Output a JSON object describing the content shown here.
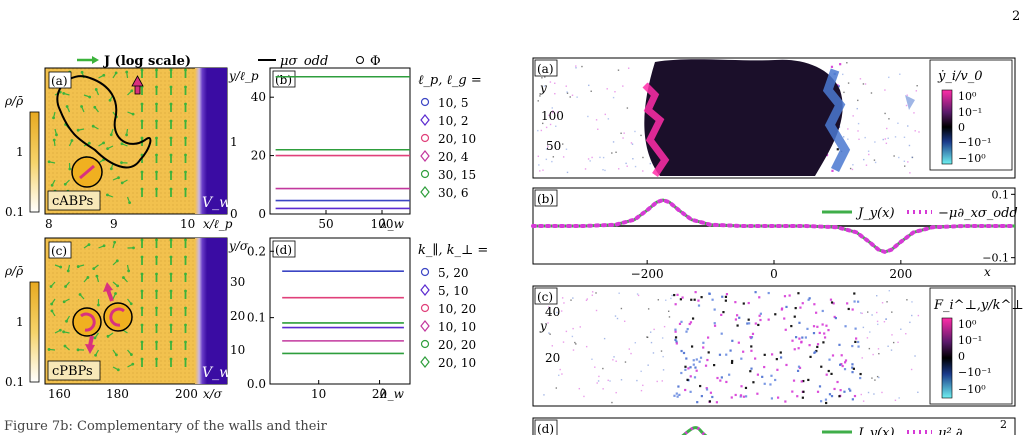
{
  "page_number": "2",
  "colors": {
    "field_bg": "#f2c14e",
    "wall": "#3a0ca3",
    "arrow_green": "#3bb33b",
    "particle_fill": "#f0b020",
    "particle_arrow": "#d9317e",
    "blue": "#3b45c4",
    "purple": "#5b2bd0",
    "pink": "#e0407a",
    "magenta": "#c2389e",
    "green": "#2e9e3c",
    "diag_green": "#3fae49",
    "diag_mag": "#d63ad6"
  },
  "top_legend": {
    "arrow_label": "J (log scale)",
    "line_label": "μσ_odd",
    "marker_label": "Φ"
  },
  "panel_a": {
    "label": "(a)",
    "tag": "cABPs",
    "ylabel": "ρ/ρ̄",
    "wall_label": "V_w",
    "xticks": [
      "8",
      "9",
      "10"
    ],
    "xaxis": "x/ℓ_p",
    "yaxis": "y/ℓ_p",
    "yticks": [
      "0",
      "1"
    ],
    "cbar_ticks": [
      "0.1",
      "1"
    ]
  },
  "panel_c": {
    "label": "(c)",
    "tag": "cPBPs",
    "ylabel": "ρ/ρ̄",
    "wall_label": "V_w",
    "xticks": [
      "160",
      "180",
      "200"
    ],
    "xaxis": "x/σ",
    "yaxis": "y/σ",
    "yticks": [
      "10",
      "20",
      "30"
    ],
    "cbar_ticks": [
      "0.1",
      "1"
    ]
  },
  "chart_data": [
    {
      "id": "b",
      "type": "line",
      "label": "(b)",
      "xlabel": "λ_w",
      "xlim": [
        0,
        125
      ],
      "ylim": [
        0,
        50
      ],
      "xticks": [
        "50",
        "100"
      ],
      "yticks": [
        "0",
        "20",
        "40"
      ],
      "legend_title": "ℓ_p, ℓ_g =",
      "series": [
        {
          "name": "10, 5",
          "marker": "circle",
          "color": "#3b45c4",
          "x": [
            5,
            20,
            35,
            50,
            65,
            80,
            95,
            110,
            125
          ],
          "values": [
            4.6,
            4.6,
            4.6,
            4.6,
            4.6,
            4.6,
            4.6,
            4.6,
            4.6
          ]
        },
        {
          "name": "10, 2",
          "marker": "diamond",
          "color": "#5b2bd0",
          "x": [
            5,
            20,
            35,
            50,
            65,
            80,
            95,
            110,
            125
          ],
          "values": [
            1.9,
            1.9,
            1.9,
            1.9,
            1.9,
            1.9,
            1.9,
            1.9,
            1.9
          ]
        },
        {
          "name": "20, 10",
          "marker": "circle",
          "color": "#e0407a",
          "x": [
            5,
            20,
            35,
            50,
            65,
            80,
            95,
            110,
            125
          ],
          "values": [
            20,
            20,
            20,
            20,
            20,
            20,
            20,
            20,
            20
          ]
        },
        {
          "name": "20, 4",
          "marker": "diamond",
          "color": "#c2389e",
          "x": [
            5,
            20,
            35,
            50,
            65,
            80,
            95,
            110,
            125
          ],
          "values": [
            8.7,
            8.7,
            8.7,
            8.7,
            8.7,
            8.7,
            8.7,
            8.7,
            8.7
          ]
        },
        {
          "name": "30, 15",
          "marker": "circle",
          "color": "#2e9e3c",
          "x": [
            5,
            20,
            35,
            50,
            65,
            80,
            95,
            110,
            125
          ],
          "values": [
            47,
            47,
            47,
            47,
            47,
            47,
            47,
            47,
            47
          ]
        },
        {
          "name": "30, 6",
          "marker": "diamond",
          "color": "#2e9e3c",
          "x": [
            5,
            20,
            35,
            50,
            65,
            80,
            95,
            110,
            125
          ],
          "values": [
            22,
            22,
            22,
            22,
            22,
            22,
            22,
            22,
            22
          ]
        }
      ]
    },
    {
      "id": "d",
      "type": "line",
      "label": "(d)",
      "xlabel": "λ_w",
      "xlim": [
        2,
        25
      ],
      "ylim": [
        0,
        0.22
      ],
      "xticks": [
        "10",
        "20"
      ],
      "yticks": [
        "0.0",
        "0.1",
        "0.2"
      ],
      "legend_title": "k_∥, k_⊥ =",
      "series": [
        {
          "name": "5, 20",
          "marker": "circle",
          "color": "#3b45c4",
          "x": [
            4,
            8,
            12,
            16,
            20,
            24
          ],
          "values": [
            0.17,
            0.17,
            0.17,
            0.17,
            0.17,
            0.17
          ]
        },
        {
          "name": "5, 10",
          "marker": "diamond",
          "color": "#5b2bd0",
          "x": [
            4,
            8,
            12,
            16,
            20,
            24
          ],
          "values": [
            0.085,
            0.085,
            0.085,
            0.085,
            0.085,
            0.085
          ]
        },
        {
          "name": "10, 20",
          "marker": "circle",
          "color": "#e0407a",
          "x": [
            4,
            8,
            12,
            16,
            20,
            24
          ],
          "values": [
            0.13,
            0.13,
            0.13,
            0.13,
            0.13,
            0.13
          ]
        },
        {
          "name": "10, 10",
          "marker": "diamond",
          "color": "#c2389e",
          "x": [
            4,
            8,
            12,
            16,
            20,
            24
          ],
          "values": [
            0.065,
            0.065,
            0.065,
            0.065,
            0.065,
            0.065
          ]
        },
        {
          "name": "20, 20",
          "marker": "circle",
          "color": "#2e9e3c",
          "x": [
            4,
            8,
            12,
            16,
            20,
            24
          ],
          "values": [
            0.092,
            0.092,
            0.092,
            0.092,
            0.092,
            0.092
          ]
        },
        {
          "name": "20, 10",
          "marker": "diamond",
          "color": "#2e9e3c",
          "x": [
            4,
            8,
            12,
            16,
            20,
            24
          ],
          "values": [
            0.046,
            0.046,
            0.046,
            0.046,
            0.046,
            0.046
          ]
        }
      ]
    },
    {
      "id": "rb",
      "type": "line",
      "label": "(b)",
      "xlabel": "x",
      "xlim": [
        -380,
        380
      ],
      "ylim": [
        -0.12,
        0.12
      ],
      "xticks": [
        "−200",
        "0",
        "200"
      ],
      "yticks": [
        "0.1",
        "−0.1"
      ],
      "series": [
        {
          "name": "J_y(x)",
          "style": "solid",
          "color": "#3fae49",
          "x": [
            -380,
            -300,
            -250,
            -220,
            -200,
            -185,
            -175,
            -165,
            -150,
            -130,
            -100,
            -50,
            0,
            50,
            100,
            130,
            150,
            165,
            175,
            185,
            200,
            220,
            250,
            300,
            380
          ],
          "values": [
            0,
            0,
            0.004,
            0.02,
            0.05,
            0.075,
            0.082,
            0.075,
            0.05,
            0.02,
            0.004,
            0,
            0,
            0,
            -0.004,
            -0.02,
            -0.05,
            -0.075,
            -0.082,
            -0.075,
            -0.05,
            -0.02,
            -0.004,
            0,
            0
          ]
        },
        {
          "name": "−μ∂_xσ_odd",
          "style": "dotted",
          "color": "#d63ad6",
          "x": [
            -380,
            -300,
            -250,
            -220,
            -200,
            -185,
            -175,
            -165,
            -150,
            -130,
            -100,
            -50,
            0,
            50,
            100,
            130,
            150,
            165,
            175,
            185,
            200,
            220,
            250,
            300,
            380
          ],
          "values": [
            0,
            0,
            0.004,
            0.02,
            0.05,
            0.075,
            0.082,
            0.075,
            0.05,
            0.02,
            0.004,
            0,
            0,
            0,
            -0.004,
            -0.02,
            -0.05,
            -0.075,
            -0.082,
            -0.075,
            -0.05,
            -0.02,
            -0.004,
            0,
            0
          ]
        }
      ]
    }
  ],
  "right_a": {
    "label": "(a)",
    "yaxis": "y",
    "yticks": [
      "100",
      "50"
    ],
    "cbar_title": "ẏ_i/v_0",
    "cbar_ticks": [
      "10⁰",
      "10⁻¹",
      "0",
      "−10⁻¹",
      "−10⁰"
    ]
  },
  "right_c": {
    "label": "(c)",
    "yaxis": "y",
    "yticks": [
      "40",
      "20"
    ],
    "cbar_title": "F_i^⊥,y/k^⊥",
    "cbar_ticks": [
      "10⁰",
      "10⁻¹",
      "0",
      "−10⁻¹",
      "−10⁰"
    ]
  },
  "right_d": {
    "label": "(d)",
    "tick_top": "2",
    "legend1": "J_y(x)",
    "legend2": "μ² ∂"
  },
  "caption_fragment": "Figure 7b: Complementary of the walls and their"
}
